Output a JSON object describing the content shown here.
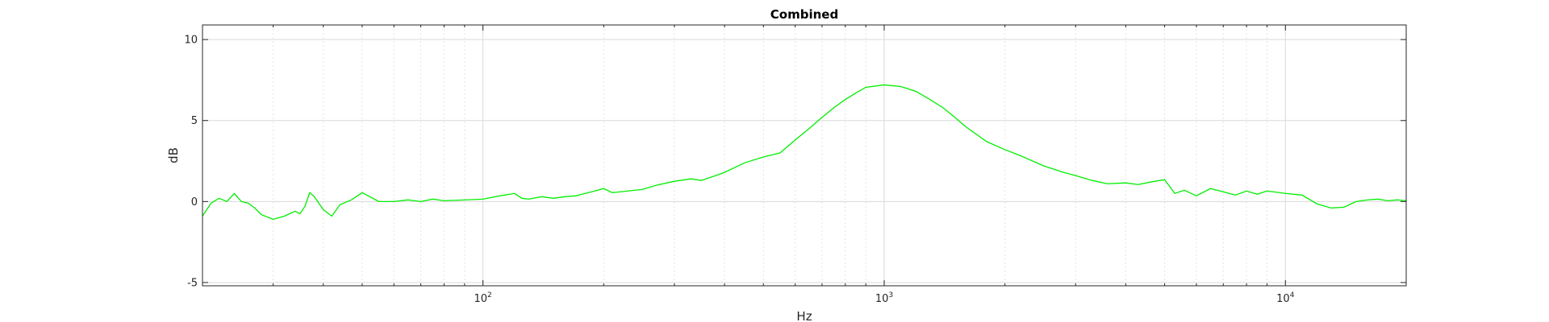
{
  "chart_data": {
    "type": "line",
    "title": "Combined",
    "xlabel": "Hz",
    "ylabel": "dB",
    "xscale": "log",
    "xlim": [
      20,
      20000
    ],
    "ylim": [
      -5.2,
      10.9
    ],
    "grid": true,
    "legend": "none",
    "colors": {
      "series": "#00ee00",
      "grid_major": "#d9d9d9",
      "grid_minor": "#e3e3e3",
      "axes": "#262626"
    },
    "x_ticks": [
      {
        "value": 100,
        "base": "10",
        "exp": "2"
      },
      {
        "value": 1000,
        "base": "10",
        "exp": "3"
      },
      {
        "value": 10000,
        "base": "10",
        "exp": "4"
      }
    ],
    "y_ticks": [
      {
        "value": -5,
        "label": "-5"
      },
      {
        "value": 0,
        "label": "0"
      },
      {
        "value": 5,
        "label": "5"
      },
      {
        "value": 10,
        "label": "10"
      }
    ],
    "series": [
      {
        "x": [
          20,
          21,
          22,
          23,
          24,
          25,
          26,
          27,
          28,
          30,
          32,
          34,
          35,
          36,
          37,
          38,
          40,
          42,
          44,
          47,
          50,
          55,
          60,
          65,
          70,
          75,
          80,
          90,
          100,
          110,
          120,
          125,
          130,
          140,
          150,
          160,
          170,
          180,
          190,
          200,
          210,
          230,
          250,
          270,
          300,
          330,
          350,
          380,
          400,
          450,
          500,
          550,
          600,
          650,
          700,
          750,
          800,
          850,
          900,
          1000,
          1100,
          1200,
          1300,
          1400,
          1500,
          1600,
          1800,
          2000,
          2200,
          2500,
          2800,
          3000,
          3300,
          3600,
          4000,
          4300,
          4600,
          5000,
          5300,
          5600,
          6000,
          6500,
          7000,
          7500,
          8000,
          8500,
          9000,
          10000,
          11000,
          12000,
          13000,
          14000,
          15000,
          16000,
          17000,
          18000,
          19000,
          20000
        ],
        "y": [
          -0.9,
          -0.1,
          0.2,
          0.0,
          0.5,
          0.0,
          -0.1,
          -0.4,
          -0.8,
          -1.1,
          -0.9,
          -0.6,
          -0.75,
          -0.3,
          0.55,
          0.3,
          -0.5,
          -0.9,
          -0.2,
          0.1,
          0.55,
          0.0,
          0.0,
          0.1,
          0.0,
          0.15,
          0.05,
          0.1,
          0.15,
          0.35,
          0.5,
          0.2,
          0.15,
          0.3,
          0.2,
          0.3,
          0.35,
          0.5,
          0.65,
          0.8,
          0.55,
          0.65,
          0.75,
          1.0,
          1.25,
          1.4,
          1.3,
          1.6,
          1.8,
          2.4,
          2.75,
          3.0,
          3.8,
          4.5,
          5.2,
          5.8,
          6.3,
          6.7,
          7.05,
          7.2,
          7.1,
          6.8,
          6.3,
          5.8,
          5.2,
          4.6,
          3.7,
          3.2,
          2.8,
          2.2,
          1.8,
          1.6,
          1.3,
          1.1,
          1.15,
          1.05,
          1.2,
          1.35,
          0.5,
          0.7,
          0.35,
          0.8,
          0.6,
          0.4,
          0.65,
          0.45,
          0.65,
          0.5,
          0.4,
          -0.15,
          -0.4,
          -0.35,
          0.0,
          0.1,
          0.15,
          0.05,
          0.1,
          0.05
        ]
      }
    ]
  }
}
